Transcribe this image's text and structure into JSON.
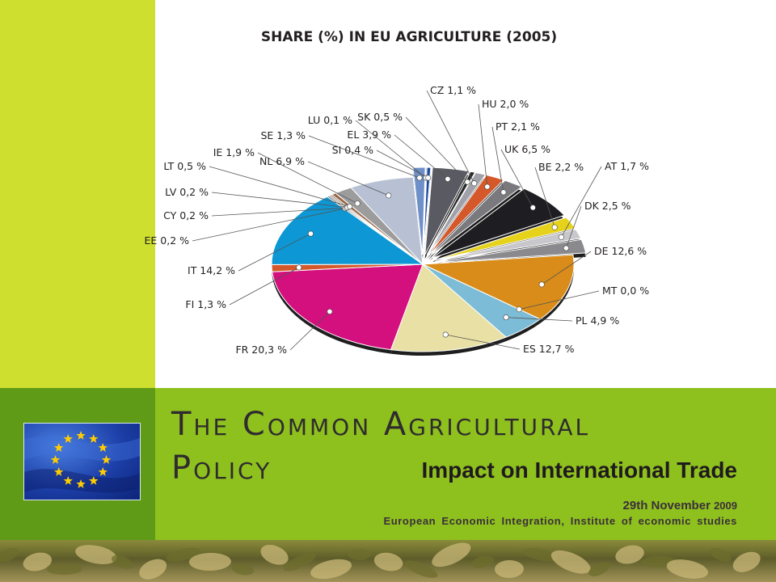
{
  "slide": {
    "title": "The Common Agricultural Policy",
    "title_line1": "The Common Agricultural",
    "title_line2": "Policy",
    "subtitle": "Impact on International Trade",
    "date_prefix": "29th November",
    "date_year": "2009",
    "footer": "European Economic Integration, Institute of economic studies",
    "colors": {
      "accent_bar": "#cedf2f",
      "band": "#8ec11d",
      "band_left": "#5f9b17",
      "flag_blue": "#1c3fa8",
      "flag_star": "#ffcc00"
    },
    "images": {
      "flag": "eu-flag",
      "photo": "wheat-field-photo"
    }
  },
  "chart_data": {
    "type": "pie",
    "title": "SHARE (%) IN EU AGRICULTURE (2005)",
    "unit": "%",
    "slices": [
      {
        "label": "DE 12,6 %",
        "code": "DE",
        "value": 12.6,
        "color": "#d98c19",
        "exploded": false
      },
      {
        "label": "MT 0,0 %",
        "code": "MT",
        "value": 0.0,
        "color": "#ffffff",
        "exploded": false
      },
      {
        "label": "PL 4,9 %",
        "code": "PL",
        "value": 4.9,
        "color": "#7cbcd6",
        "exploded": false
      },
      {
        "label": "ES 12,7 %",
        "code": "ES",
        "value": 12.7,
        "color": "#e8e0a4",
        "exploded": false
      },
      {
        "label": "FR 20,3 %",
        "code": "FR",
        "value": 20.3,
        "color": "#d40f7e",
        "exploded": false
      },
      {
        "label": "FI 1,3 %",
        "code": "FI",
        "value": 1.3,
        "color": "#d4582a",
        "exploded": false
      },
      {
        "label": "IT 14,2 %",
        "code": "IT",
        "value": 14.2,
        "color": "#0d97d4",
        "exploded": false
      },
      {
        "label": "EE 0,2 %",
        "code": "EE",
        "value": 0.2,
        "color": "#303030",
        "exploded": false
      },
      {
        "label": "CY 0,2 %",
        "code": "CY",
        "value": 0.2,
        "color": "#8a5a3a",
        "exploded": false
      },
      {
        "label": "LV 0,2 %",
        "code": "LV",
        "value": 0.2,
        "color": "#5a5a5a",
        "exploded": false
      },
      {
        "label": "LT 0,5 %",
        "code": "LT",
        "value": 0.5,
        "color": "#9a6a4a",
        "exploded": false
      },
      {
        "label": "IE 1,9 %",
        "code": "IE",
        "value": 1.9,
        "color": "#9c9c9c",
        "exploded": false
      },
      {
        "label": "NL 6,9 %",
        "code": "NL",
        "value": 6.9,
        "color": "#b8c0d4",
        "exploded": false
      },
      {
        "label": "SE 1,3 %",
        "code": "SE",
        "value": 1.3,
        "color": "#6f8fc8",
        "exploded": true
      },
      {
        "label": "LU 0,1 %",
        "code": "LU",
        "value": 0.1,
        "color": "#1a1a1a",
        "exploded": true
      },
      {
        "label": "SI 0,4 %",
        "code": "SI",
        "value": 0.4,
        "color": "#1c4aa0",
        "exploded": true
      },
      {
        "label": "EL 3,9 %",
        "code": "EL",
        "value": 3.9,
        "color": "#5a5a62",
        "exploded": true
      },
      {
        "label": "SK 0,5 %",
        "code": "SK",
        "value": 0.5,
        "color": "#2a2a2a",
        "exploded": true
      },
      {
        "label": "CZ 1,1 %",
        "code": "CZ",
        "value": 1.1,
        "color": "#a0a0a8",
        "exploded": true
      },
      {
        "label": "HU 2,0 %",
        "code": "HU",
        "value": 2.0,
        "color": "#d4582a",
        "exploded": true
      },
      {
        "label": "PT 2,1 %",
        "code": "PT",
        "value": 2.1,
        "color": "#7a7a7e",
        "exploded": true
      },
      {
        "label": "UK 6,5 %",
        "code": "UK",
        "value": 6.5,
        "color": "#1e1e22",
        "exploded": true
      },
      {
        "label": "BE 2,2 %",
        "code": "BE",
        "value": 2.2,
        "color": "#e6d21a",
        "exploded": true
      },
      {
        "label": "AT 1,7 %",
        "code": "AT",
        "value": 1.7,
        "color": "#c8c8cc",
        "exploded": true
      },
      {
        "label": "DK 2,5 %",
        "code": "DK",
        "value": 2.5,
        "color": "#8a8a8e",
        "exploded": true
      }
    ]
  }
}
